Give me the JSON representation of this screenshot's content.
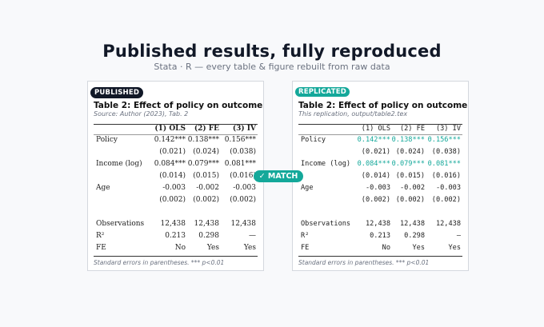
{
  "header": {
    "title": "Published results, fully reproduced",
    "subtitle": "Stata · R  —  every table & figure rebuilt from raw data"
  },
  "match": {
    "label": "✓ MATCH"
  },
  "columns": [
    "(1) OLS",
    "(2) FE",
    "(3) IV"
  ],
  "published": {
    "badge": "PUBLISHED",
    "table_title": "Table 2: Effect of policy on outcome",
    "source": "Source: Author (2023), Tab. 2",
    "rows": [
      {
        "label": "Policy",
        "values": [
          "0.142***",
          "0.138***",
          "0.156***"
        ]
      },
      {
        "label": "",
        "values": [
          "(0.021)",
          "(0.024)",
          "(0.038)"
        ]
      },
      {
        "label": "Income (log)",
        "values": [
          "0.084***",
          "0.079***",
          "0.081***"
        ]
      },
      {
        "label": "",
        "values": [
          "(0.014)",
          "(0.015)",
          "(0.016)"
        ]
      },
      {
        "label": "Age",
        "values": [
          "-0.003",
          "-0.002",
          "-0.003"
        ]
      },
      {
        "label": "",
        "values": [
          "(0.002)",
          "(0.002)",
          "(0.002)"
        ]
      }
    ],
    "stats": [
      {
        "label": "Observations",
        "values": [
          "12,438",
          "12,438",
          "12,438"
        ]
      },
      {
        "label": "R²",
        "values": [
          "0.213",
          "0.298",
          "—"
        ]
      },
      {
        "label": "FE",
        "values": [
          "No",
          "Yes",
          "Yes"
        ]
      }
    ],
    "footnote": "Standard errors in parentheses. *** p<0.01"
  },
  "replicated": {
    "badge": "REPLICATED",
    "table_title": "Table 2: Effect of policy on outcome",
    "source": "This replication, output/table2.tex",
    "rows": [
      {
        "label": "Policy",
        "values": [
          "0.142***",
          "0.138***",
          "0.156***"
        ]
      },
      {
        "label": "",
        "values": [
          "(0.021)",
          "(0.024)",
          "(0.038)"
        ]
      },
      {
        "label": "Income (log)",
        "values": [
          "0.084***",
          "0.079***",
          "0.081***"
        ]
      },
      {
        "label": "",
        "values": [
          "(0.014)",
          "(0.015)",
          "(0.016)"
        ]
      },
      {
        "label": "Age",
        "values": [
          "-0.003",
          "-0.002",
          "-0.003"
        ]
      },
      {
        "label": "",
        "values": [
          "(0.002)",
          "(0.002)",
          "(0.002)"
        ]
      }
    ],
    "stats": [
      {
        "label": "Observations",
        "values": [
          "12,438",
          "12,438",
          "12,438"
        ]
      },
      {
        "label": "R²",
        "values": [
          "0.213",
          "0.298",
          "–"
        ]
      },
      {
        "label": "FE",
        "values": [
          "No",
          "Yes",
          "Yes"
        ]
      }
    ],
    "footnote": "Standard errors in parentheses. *** p<0.01"
  },
  "colors": {
    "accent": "#14a89a",
    "dark": "#111827"
  }
}
